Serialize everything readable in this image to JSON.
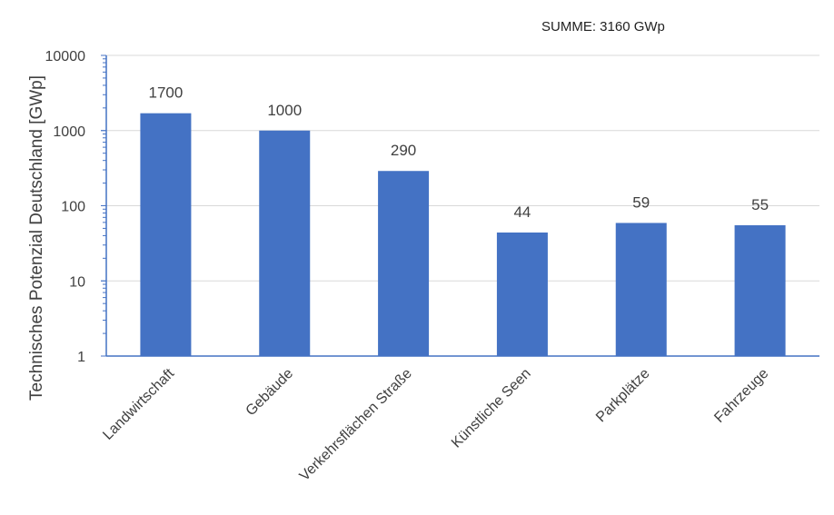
{
  "chart_data": {
    "type": "bar",
    "title": "",
    "annotation": "SUMME: 3160 GWp",
    "xlabel": "",
    "ylabel": "Technisches Potenzial Deutschland [GWp]",
    "scale": "log",
    "ylim": [
      1,
      10000
    ],
    "yticks": [
      "1",
      "10",
      "100",
      "1000",
      "10000"
    ],
    "categories": [
      "Landwirtschaft",
      "Gebäude",
      "Verkehrsflächen Straße",
      "Künstliche Seen",
      "Parkplätze",
      "Fahrzeuge"
    ],
    "values": [
      1700,
      1000,
      290,
      44,
      59,
      55
    ],
    "data_labels": [
      "1700",
      "1000",
      "290",
      "44",
      "59",
      "55"
    ],
    "grid": "horizontal",
    "legend": "none",
    "colors": {
      "bar": "#4472C4",
      "grid": "#D9D9D9",
      "axis": "#4472C4",
      "text": "#404040"
    }
  }
}
